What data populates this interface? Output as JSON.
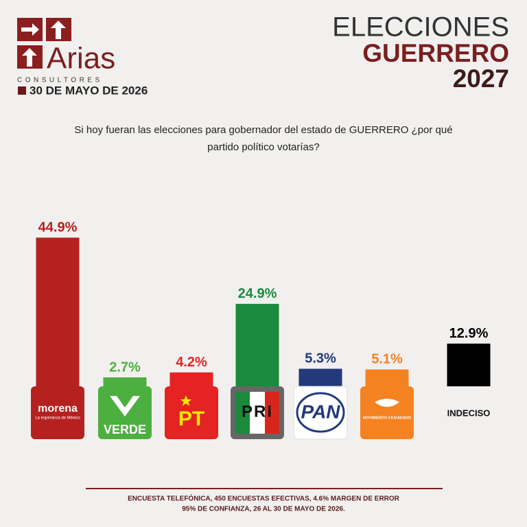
{
  "header": {
    "brand": "Arias",
    "brand_sub": "CONSULTORES",
    "date": "30 DE MAYO DE 2026",
    "title_1": "ELECCIONES",
    "title_2": "GUERRERO",
    "title_3": "2027"
  },
  "chart_data": {
    "type": "bar",
    "title": [
      "Si hoy fueran las elecciones para gobernador del estado de GUERRERO ¿por qué",
      "partido político votarías?"
    ],
    "categories": [
      "morena",
      "VERDE",
      "PT",
      "PRI",
      "PAN",
      "MOVIMIENTO CIUDADANO",
      "INDECISO"
    ],
    "logo_subtitle": "La esperanza de México",
    "values": [
      44.9,
      2.7,
      4.2,
      24.9,
      5.3,
      5.1,
      12.9
    ],
    "value_labels": [
      "44.9%",
      "2.7%",
      "4.2%",
      "24.9%",
      "5.3%",
      "5.1%",
      "12.9%"
    ],
    "colors": [
      "#b5211f",
      "#4caf3f",
      "#e42322",
      "#1a8a3c",
      "#22397a",
      "#f58220",
      "#000000"
    ],
    "ylim": [
      0,
      46
    ]
  },
  "footer": [
    "ENCUESTA TELEFÓNICA, 450 ENCUESTAS EFECTIVAS, 4.6%  MARGEN DE ERROR",
    "95% DE CONFIANZA, 26 AL 30 DE MAYO DE 2026."
  ]
}
